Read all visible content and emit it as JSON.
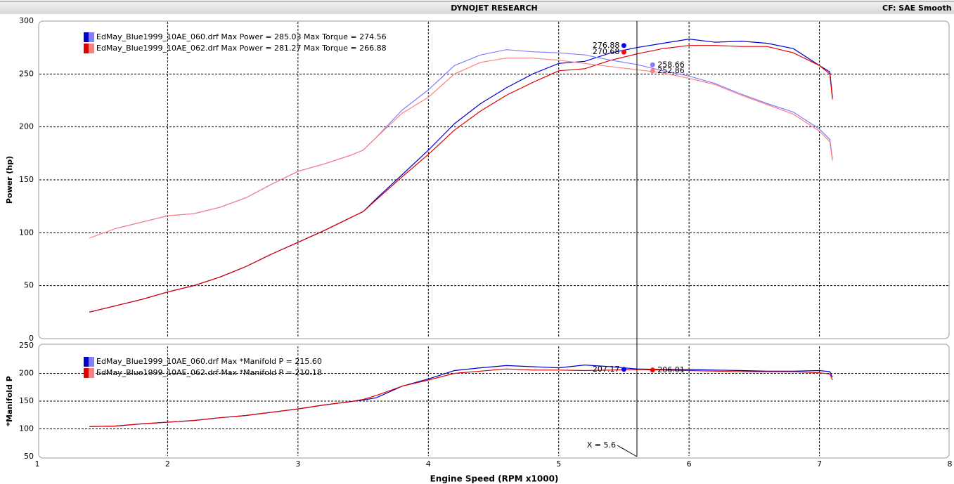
{
  "header": {
    "title": "DYNOJET RESEARCH",
    "right_text": "CF: SAE  Smooth"
  },
  "chart_data": [
    {
      "type": "line",
      "ylabel": "Power (hp)",
      "x": [
        1.4,
        1.6,
        1.8,
        2.0,
        2.2,
        2.4,
        2.6,
        2.8,
        3.0,
        3.2,
        3.4,
        3.5,
        3.6,
        3.8,
        4.0,
        4.2,
        4.4,
        4.6,
        4.8,
        5.0,
        5.2,
        5.4,
        5.6,
        5.8,
        6.0,
        6.2,
        6.4,
        6.6,
        6.8,
        7.0,
        7.08,
        7.1
      ],
      "xlim": [
        1,
        8
      ],
      "xticks": [
        1,
        2,
        3,
        4,
        5,
        6,
        7,
        8
      ],
      "ylim": [
        0,
        300
      ],
      "yticks": [
        0,
        50,
        100,
        150,
        200,
        250,
        300
      ],
      "grid": true,
      "series": [
        {
          "color": "#0000cc",
          "values": [
            25,
            31,
            37,
            44,
            50,
            58,
            68,
            80,
            91,
            102,
            114,
            120,
            132,
            155,
            178,
            203,
            222,
            237,
            250,
            260,
            262,
            270,
            275,
            279,
            283,
            280,
            281,
            279,
            274,
            258,
            252,
            228
          ]
        },
        {
          "color": "#e00000",
          "values": [
            25,
            31,
            37,
            44,
            50,
            58,
            68,
            80,
            91,
            102,
            114,
            120,
            131,
            153,
            174,
            197,
            215,
            230,
            242,
            253,
            255,
            263,
            269,
            274,
            277,
            277,
            276,
            276,
            270,
            258,
            250,
            226
          ]
        },
        {
          "color": "#7f7fff",
          "values": [
            null,
            104,
            110,
            116,
            118,
            124,
            133,
            146,
            158,
            165,
            173,
            178,
            190,
            216,
            235,
            258,
            268,
            273,
            271,
            270,
            268,
            263,
            259,
            253,
            248,
            241,
            231,
            222,
            214,
            198,
            188,
            170
          ]
        },
        {
          "color": "#ff8080",
          "values": [
            95,
            104,
            110,
            116,
            118,
            124,
            133,
            146,
            158,
            165,
            173,
            178,
            190,
            213,
            228,
            250,
            261,
            265,
            265,
            263,
            260,
            257,
            254,
            251,
            246,
            240,
            230,
            221,
            212,
            196,
            186,
            168
          ]
        }
      ],
      "legend": [
        {
          "text": "EdMay_Blue1999_10AE_060.drf Max Power = 285.03 Max Torque = 274.56",
          "colors": [
            "#0000cc",
            "#7f7fff"
          ]
        },
        {
          "text": "EdMay_Blue1999_10AE_062.drf Max Power = 281.27 Max Torque = 266.88",
          "colors": [
            "#e00000",
            "#ff8080"
          ]
        }
      ],
      "markers": [
        {
          "x": 5.5,
          "value": 276.88,
          "color": "#0000ff",
          "label_side": "left"
        },
        {
          "x": 5.5,
          "value": 270.68,
          "color": "#ff0000",
          "label_side": "left"
        },
        {
          "x": 5.72,
          "value": 258.66,
          "color": "#8080ff",
          "label_side": "right"
        },
        {
          "x": 5.72,
          "value": 252.86,
          "color": "#ff8080",
          "label_side": "right"
        }
      ]
    },
    {
      "type": "line",
      "ylabel": "*Manifold P",
      "xlabel": "Engine Speed (RPM x1000)",
      "x": [
        1.4,
        1.6,
        1.8,
        2.0,
        2.2,
        2.4,
        2.6,
        2.8,
        3.0,
        3.2,
        3.4,
        3.5,
        3.6,
        3.8,
        4.0,
        4.2,
        4.4,
        4.6,
        4.8,
        5.0,
        5.2,
        5.4,
        5.6,
        5.8,
        6.0,
        6.2,
        6.4,
        6.6,
        6.8,
        7.0,
        7.08,
        7.1
      ],
      "xlim": [
        1,
        8
      ],
      "xticks": [
        1,
        2,
        3,
        4,
        5,
        6,
        7,
        8
      ],
      "ylim": [
        50,
        250
      ],
      "yticks": [
        50,
        100,
        150,
        200,
        250
      ],
      "grid": true,
      "series": [
        {
          "color": "#0000cc",
          "values": [
            104,
            105,
            109,
            112,
            115,
            120,
            124,
            130,
            136,
            143,
            149,
            152,
            156,
            177,
            190,
            205,
            210,
            214,
            212,
            210,
            215,
            212,
            208,
            207,
            207,
            206,
            205,
            204,
            204,
            205,
            203,
            193
          ]
        },
        {
          "color": "#e00000",
          "values": [
            104,
            105,
            109,
            112,
            115,
            120,
            124,
            130,
            136,
            143,
            149,
            153,
            160,
            177,
            188,
            200,
            204,
            208,
            206,
            206,
            205,
            206,
            207,
            206,
            205,
            204,
            203,
            203,
            203,
            201,
            199,
            188
          ]
        }
      ],
      "legend": [
        {
          "text": "EdMay_Blue1999_10AE_060.drf Max *Manifold P = 215.60",
          "colors": [
            "#0000cc",
            "#7f7fff"
          ]
        },
        {
          "text": "EdMay_Blue1999_10AE_062.drf Max *Manifold P = 210.18",
          "colors": [
            "#e00000",
            "#ff8080"
          ]
        }
      ],
      "markers": [
        {
          "x": 5.5,
          "value": 207.17,
          "color": "#0000ff",
          "label_side": "left"
        },
        {
          "x": 5.72,
          "value": 206.01,
          "color": "#ff0000",
          "label_side": "right"
        }
      ],
      "cursor": {
        "value": 5.6,
        "label": "X = 5.6"
      }
    }
  ]
}
